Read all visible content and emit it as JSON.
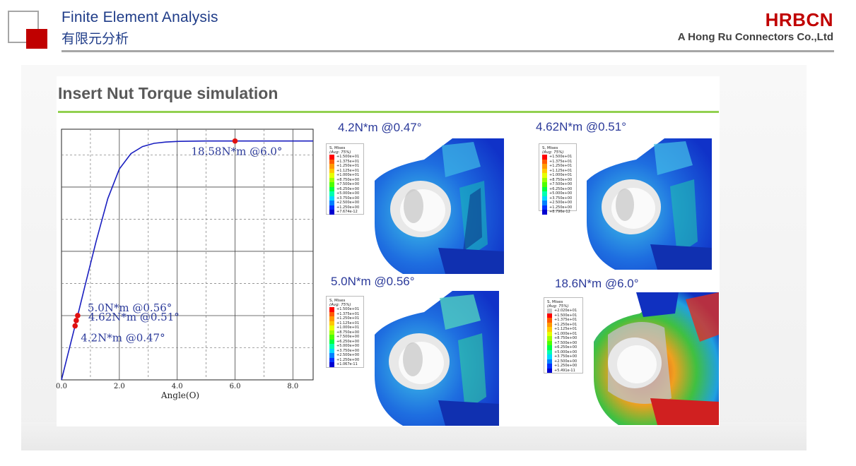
{
  "header": {
    "title_en": "Finite Element Analysis",
    "title_cn": "有限元分析",
    "brand": "HRBCN",
    "company": "A Hong Ru Connectors Co.,Ltd"
  },
  "slide": {
    "title": "Insert Nut Torque simulation"
  },
  "chart_data": {
    "type": "line",
    "xlabel": "Angle(O)",
    "ylabel": "",
    "xlim": [
      0,
      8.7
    ],
    "ylim": [
      0,
      19.5
    ],
    "x_ticks": [
      "0.0",
      "2.0",
      "4.0",
      "6.0",
      "8.0"
    ],
    "x": [
      0,
      0.2,
      0.47,
      0.51,
      0.56,
      0.8,
      1.2,
      1.6,
      2.0,
      2.4,
      2.8,
      3.2,
      3.6,
      4.0,
      4.5,
      5.0,
      6.0,
      7.0,
      8.0,
      8.7
    ],
    "series": [
      {
        "values": [
          0,
          1.8,
          4.2,
          4.62,
          5.0,
          7.2,
          10.8,
          14.1,
          16.4,
          17.6,
          18.15,
          18.4,
          18.5,
          18.55,
          18.57,
          18.58,
          18.58,
          18.58,
          18.58,
          18.58
        ]
      }
    ],
    "points": [
      {
        "x": 0.47,
        "y": 4.2,
        "label": "4.2N*m @0.47°"
      },
      {
        "x": 0.51,
        "y": 4.62,
        "label": "4.62N*m @0.51°"
      },
      {
        "x": 0.56,
        "y": 5.0,
        "label": "5.0N*m @0.56°"
      },
      {
        "x": 6.0,
        "y": 18.58,
        "label": "18.58N*m @6.0°"
      }
    ],
    "grid": true,
    "line_color": "#1a1fc0",
    "point_color": "#e01010"
  },
  "fea": [
    {
      "title": "4.2N*m @0.47°",
      "legend_title": "S, Mises",
      "legend_avg": "(Avg: 75%)",
      "legend_values": [
        "+1.500e+01",
        "+1.375e+01",
        "+1.250e+01",
        "+1.125e+01",
        "+1.000e+01",
        "+8.750e+00",
        "+7.500e+00",
        "+6.250e+00",
        "+5.000e+00",
        "+3.750e+00",
        "+2.500e+00",
        "+1.250e+00",
        "+7.674e-12"
      ]
    },
    {
      "title": "4.62N*m @0.51°",
      "legend_title": "S, Mises",
      "legend_avg": "(Avg: 75%)",
      "legend_values": [
        "+1.500e+01",
        "+1.375e+01",
        "+1.250e+01",
        "+1.125e+01",
        "+1.000e+01",
        "+8.750e+00",
        "+7.500e+00",
        "+6.250e+00",
        "+5.000e+00",
        "+3.750e+00",
        "+2.500e+00",
        "+1.250e+00",
        "+8.796e-12"
      ]
    },
    {
      "title": "5.0N*m @0.56°",
      "legend_title": "S, Mises",
      "legend_avg": "(Avg: 75%)",
      "legend_values": [
        "+1.500e+01",
        "+1.375e+01",
        "+1.250e+01",
        "+1.125e+01",
        "+1.000e+01",
        "+8.750e+00",
        "+7.500e+00",
        "+6.250e+00",
        "+5.000e+00",
        "+3.750e+00",
        "+2.500e+00",
        "+1.250e+00",
        "+1.067e-11"
      ]
    },
    {
      "title": "18.6N*m @6.0°",
      "legend_title": "S, Mises",
      "legend_avg": "(Avg: 75%)",
      "legend_values": [
        "+2.020e+01",
        "+1.500e+01",
        "+1.375e+01",
        "+1.250e+01",
        "+1.125e+01",
        "+1.000e+01",
        "+8.750e+00",
        "+7.500e+00",
        "+6.250e+00",
        "+5.000e+00",
        "+3.750e+00",
        "+2.500e+00",
        "+1.250e+00",
        "+5.491e-11"
      ]
    }
  ],
  "colors": {
    "header_blue": "#1f3c88",
    "brand_red": "#c00000",
    "accent_green": "#92d050",
    "fea_title_blue": "#2b3a9a"
  }
}
